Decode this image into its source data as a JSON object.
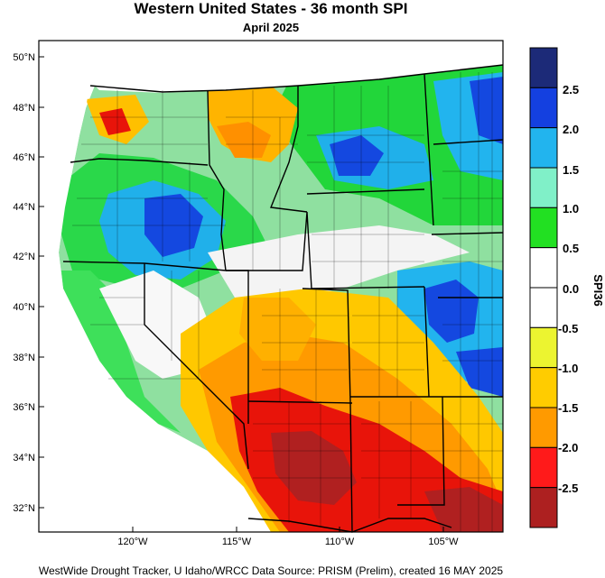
{
  "title": "Western United States - 36 month SPI",
  "subtitle": "April 2025",
  "credit": "WestWide Drought Tracker, U Idaho/WRCC Data Source: PRISM (Prelim), created 16 MAY 2025",
  "lat_ticks": [
    "50°N",
    "48°N",
    "46°N",
    "44°N",
    "42°N",
    "40°N",
    "38°N",
    "36°N",
    "34°N",
    "32°N"
  ],
  "lon_ticks": [
    "120°W",
    "115°W",
    "110°W",
    "105°W"
  ],
  "colorbar": {
    "title": "SPI36",
    "labels": [
      "2.5",
      "2.0",
      "1.5",
      "1.0",
      "0.5",
      "0.0",
      "-0.5",
      "-1.0",
      "-1.5",
      "-2.0",
      "-2.5"
    ],
    "colors": [
      "#1c2a78",
      "#1440e0",
      "#22b4ee",
      "#80f0c8",
      "#22e022",
      "#ffffff",
      "#ffffff",
      "#ecf430",
      "#ffcc00",
      "#ff9a00",
      "#ff1a1a",
      "#ad2020"
    ]
  },
  "colors": {
    "ocean": "#ffffff",
    "drought_severe": "#e8140a",
    "drought_extreme": "#b02020",
    "drought_moderate": "#ff9000",
    "drought_mild": "#ffc800",
    "drought_weak": "#eef028",
    "wet_weak": "#22dd22",
    "wet_moderate": "#80f0c8",
    "wet_strong": "#20a8ee",
    "wet_very": "#1448e0",
    "wet_extreme": "#1c2a80"
  }
}
